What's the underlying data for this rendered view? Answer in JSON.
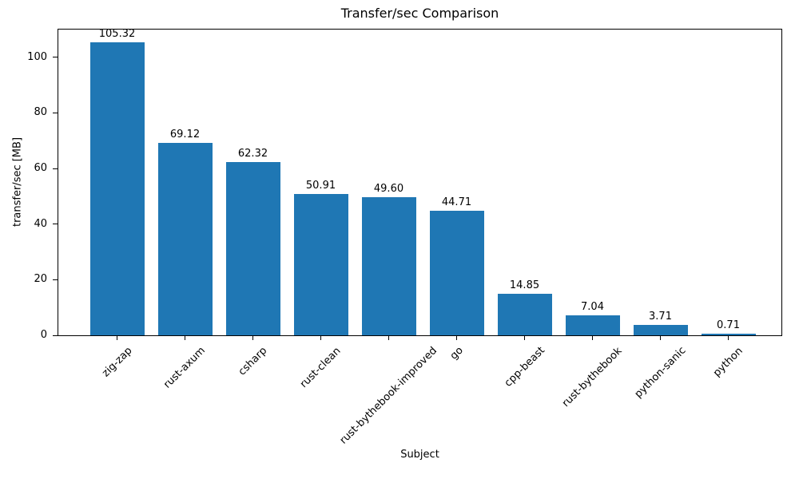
{
  "chart_data": {
    "type": "bar",
    "title": "Transfer/sec Comparison",
    "xlabel": "Subject",
    "ylabel": "transfer/sec [MB]",
    "categories": [
      "zig-zap",
      "rust-axum",
      "csharp",
      "rust-clean",
      "rust-bythebook-improved",
      "go",
      "cpp-beast",
      "rust-bythebook",
      "python-sanic",
      "python"
    ],
    "values": [
      105.32,
      69.12,
      62.32,
      50.91,
      49.6,
      44.71,
      14.85,
      7.04,
      3.71,
      0.71
    ],
    "value_labels": [
      "105.32",
      "69.12",
      "62.32",
      "50.91",
      "49.60",
      "44.71",
      "14.85",
      "7.04",
      "3.71",
      "0.71"
    ],
    "ylim": [
      0,
      110
    ],
    "yticks": [
      0,
      20,
      40,
      60,
      80,
      100
    ],
    "bar_color": "#1f77b4",
    "grid": false,
    "legend": null
  }
}
